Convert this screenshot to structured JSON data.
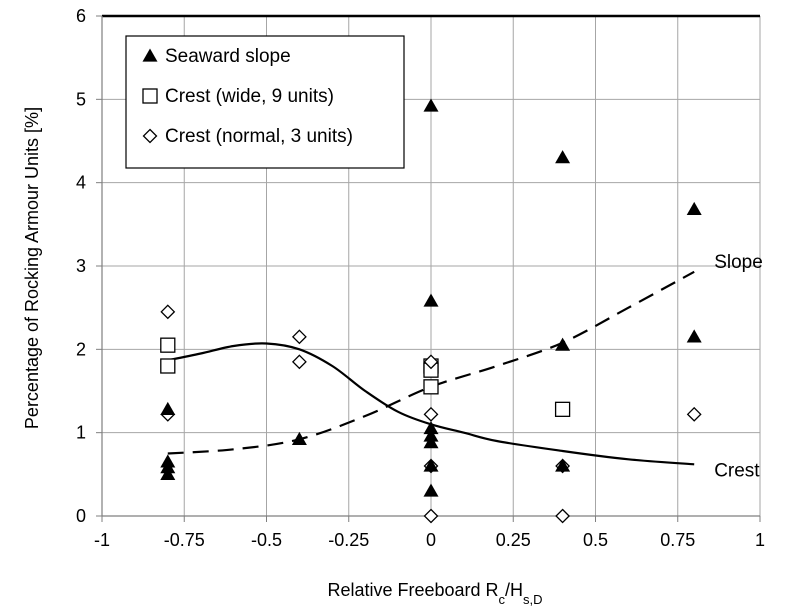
{
  "chart_data": {
    "type": "scatter",
    "xlabel": {
      "main": "Relative Freeboard R",
      "sub1": "c",
      "mid": "/H",
      "sub2": "s,D"
    },
    "ylabel": "Percentage of Rocking Armour Units [%]",
    "xlim": [
      -1,
      1
    ],
    "ylim": [
      0,
      6
    ],
    "xticks": [
      -1,
      -0.75,
      -0.5,
      -0.25,
      0,
      0.25,
      0.5,
      0.75,
      1
    ],
    "xtick_labels": [
      "-1",
      "-0.75",
      "-0.5",
      "-0.25",
      "0",
      "0.25",
      "0.5",
      "0.75",
      "1"
    ],
    "yticks": [
      0,
      1,
      2,
      3,
      4,
      5,
      6
    ],
    "ytick_labels": [
      "0",
      "1",
      "2",
      "3",
      "4",
      "5",
      "6"
    ],
    "grid": true,
    "legend_position": "top-left",
    "series": [
      {
        "name": "Seaward slope",
        "marker": "filled-triangle",
        "points": [
          [
            -0.8,
            1.28
          ],
          [
            -0.8,
            0.65
          ],
          [
            -0.8,
            0.58
          ],
          [
            -0.8,
            0.5
          ],
          [
            -0.4,
            0.92
          ],
          [
            0,
            4.92
          ],
          [
            0,
            2.58
          ],
          [
            0,
            1.05
          ],
          [
            0,
            0.96
          ],
          [
            0,
            0.88
          ],
          [
            0,
            0.6
          ],
          [
            0,
            0.3
          ],
          [
            0.4,
            4.3
          ],
          [
            0.4,
            2.05
          ],
          [
            0.4,
            0.6
          ],
          [
            0.8,
            3.68
          ],
          [
            0.8,
            2.15
          ]
        ]
      },
      {
        "name": "Crest (wide, 9 units)",
        "marker": "open-square",
        "points": [
          [
            -0.8,
            2.05
          ],
          [
            -0.8,
            1.8
          ],
          [
            0,
            1.8
          ],
          [
            0,
            1.75
          ],
          [
            0,
            1.55
          ],
          [
            0.4,
            1.28
          ]
        ]
      },
      {
        "name": "Crest (normal, 3 units)",
        "marker": "open-diamond",
        "points": [
          [
            -0.8,
            2.45
          ],
          [
            -0.8,
            1.22
          ],
          [
            -0.4,
            2.15
          ],
          [
            -0.4,
            1.85
          ],
          [
            0,
            1.85
          ],
          [
            0,
            1.22
          ],
          [
            0,
            0.6
          ],
          [
            0,
            0.0
          ],
          [
            0.4,
            0.6
          ],
          [
            0.4,
            0.0
          ],
          [
            0.8,
            1.22
          ]
        ]
      }
    ],
    "curves": [
      {
        "label": "Slope",
        "style": "dashed",
        "points": [
          [
            -0.8,
            0.75
          ],
          [
            -0.6,
            0.8
          ],
          [
            -0.4,
            0.92
          ],
          [
            -0.2,
            1.2
          ],
          [
            0,
            1.55
          ],
          [
            0.2,
            1.8
          ],
          [
            0.4,
            2.08
          ],
          [
            0.6,
            2.5
          ],
          [
            0.8,
            2.93
          ]
        ]
      },
      {
        "label": "Crest",
        "style": "solid",
        "points": [
          [
            -0.8,
            1.87
          ],
          [
            -0.7,
            1.95
          ],
          [
            -0.6,
            2.04
          ],
          [
            -0.5,
            2.07
          ],
          [
            -0.4,
            2.0
          ],
          [
            -0.3,
            1.8
          ],
          [
            -0.2,
            1.5
          ],
          [
            -0.1,
            1.25
          ],
          [
            0,
            1.1
          ],
          [
            0.1,
            1.0
          ],
          [
            0.2,
            0.9
          ],
          [
            0.4,
            0.78
          ],
          [
            0.6,
            0.68
          ],
          [
            0.8,
            0.62
          ]
        ]
      }
    ]
  }
}
